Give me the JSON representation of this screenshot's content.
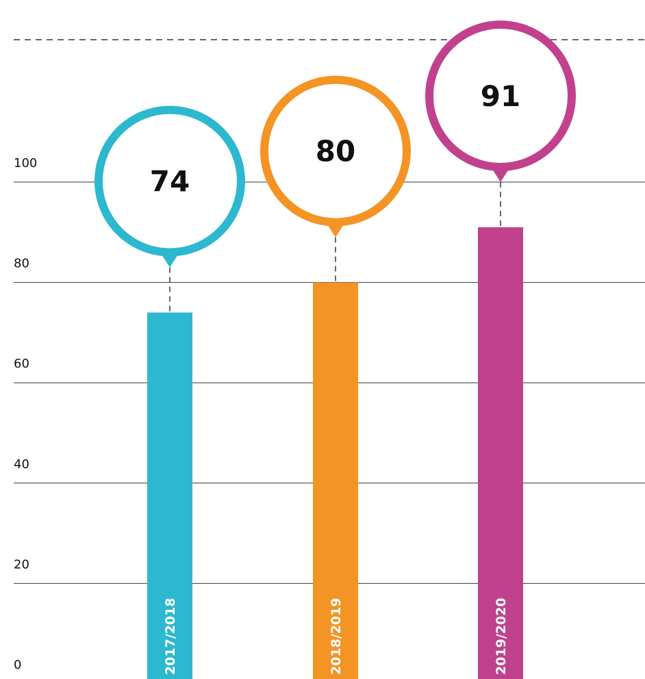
{
  "chart_data": {
    "type": "bar",
    "categories": [
      "2017/2018",
      "2018/2019",
      "2019/2020"
    ],
    "series": [
      {
        "colors": [
          "#2cb8cf",
          "#f39425",
          "#c2418e"
        ],
        "values": [
          74,
          80,
          91
        ]
      }
    ],
    "ylim": [
      0,
      100
    ],
    "yticks": [
      0,
      20,
      40,
      60,
      80,
      100
    ],
    "grid": true
  }
}
